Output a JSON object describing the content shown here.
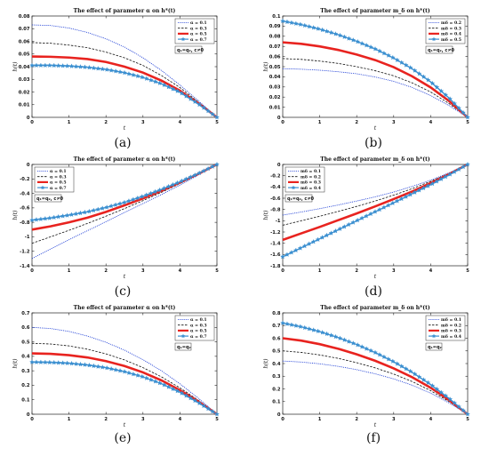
{
  "chart_data": [
    {
      "type": "line",
      "caption": "(a)",
      "title": "The effect of parameter α on h*(t)",
      "xlabel": "t",
      "ylabel": "h(t)",
      "xlim": [
        0,
        5
      ],
      "ylim": [
        0,
        0.08
      ],
      "xticks": [
        "0",
        "1",
        "2",
        "3",
        "4",
        "5"
      ],
      "yticks": [
        "0",
        "0.01",
        "0.02",
        "0.03",
        "0.04",
        "0.05",
        "0.06",
        "0.07",
        "0.08"
      ],
      "legend_position": "top-right",
      "annotation": "q₁=q₂, c≠0",
      "x": [
        0,
        0.5,
        1,
        1.5,
        2,
        2.5,
        3,
        3.5,
        4,
        4.5,
        5
      ],
      "series": [
        {
          "name": "α = 0.1",
          "style": "dotted",
          "color": "#1f3fd6",
          "values": [
            0.073,
            0.0725,
            0.0705,
            0.067,
            0.062,
            0.0555,
            0.047,
            0.037,
            0.0255,
            0.013,
            0
          ]
        },
        {
          "name": "α = 0.3",
          "style": "dashed",
          "color": "#111111",
          "values": [
            0.059,
            0.0585,
            0.057,
            0.055,
            0.0515,
            0.047,
            0.041,
            0.033,
            0.0235,
            0.012,
            0
          ]
        },
        {
          "name": "α = 0.5",
          "style": "solid",
          "color": "#e8231f",
          "values": [
            0.048,
            0.0478,
            0.0472,
            0.046,
            0.0437,
            0.04,
            0.0353,
            0.029,
            0.0211,
            0.011,
            0
          ]
        },
        {
          "name": "α = 0.7",
          "style": "marker",
          "color": "#3a8fd0",
          "values": [
            0.041,
            0.041,
            0.0405,
            0.0395,
            0.0378,
            0.0352,
            0.0315,
            0.0265,
            0.0198,
            0.0105,
            0
          ]
        }
      ]
    },
    {
      "type": "line",
      "caption": "(b)",
      "title": "The effect of parameter m_δ on h*(t)",
      "xlabel": "t",
      "ylabel": "h(t)",
      "xlim": [
        0,
        5
      ],
      "ylim": [
        0,
        0.1
      ],
      "xticks": [
        "0",
        "1",
        "2",
        "3",
        "4",
        "5"
      ],
      "yticks": [
        "0",
        "0.01",
        "0.02",
        "0.03",
        "0.04",
        "0.05",
        "0.06",
        "0.07",
        "0.08",
        "0.09",
        "0.1"
      ],
      "legend_position": "top-right",
      "annotation": "q₁=q₂, c≠0",
      "x": [
        0,
        0.5,
        1,
        1.5,
        2,
        2.5,
        3,
        3.5,
        4,
        4.5,
        5
      ],
      "series": [
        {
          "name": "mδ = 0.2",
          "style": "dotted",
          "color": "#1f3fd6",
          "values": [
            0.048,
            0.0475,
            0.0465,
            0.045,
            0.043,
            0.0398,
            0.0355,
            0.0295,
            0.0215,
            0.0115,
            0
          ]
        },
        {
          "name": "mδ = 0.3",
          "style": "dashed",
          "color": "#111111",
          "values": [
            0.058,
            0.0572,
            0.0555,
            0.0532,
            0.05,
            0.046,
            0.041,
            0.034,
            0.025,
            0.0135,
            0
          ]
        },
        {
          "name": "mδ = 0.4",
          "style": "solid",
          "color": "#e8231f",
          "values": [
            0.074,
            0.0725,
            0.07,
            0.0665,
            0.062,
            0.0565,
            0.0495,
            0.0405,
            0.0295,
            0.016,
            0
          ]
        },
        {
          "name": "mδ = 0.5",
          "style": "marker",
          "color": "#3a8fd0",
          "values": [
            0.095,
            0.0915,
            0.087,
            0.0815,
            0.075,
            0.0675,
            0.0585,
            0.048,
            0.035,
            0.019,
            0
          ]
        }
      ]
    },
    {
      "type": "line",
      "caption": "(c)",
      "title": "The effect of parameter α on h*(t)",
      "xlabel": "t",
      "ylabel": "h(t)",
      "xlim": [
        0,
        5
      ],
      "ylim": [
        -1.4,
        0
      ],
      "xticks": [
        "0",
        "1",
        "2",
        "3",
        "4",
        "5"
      ],
      "yticks": [
        "-1.4",
        "-1.2",
        "-1",
        "-0.8",
        "-0.6",
        "-0.4",
        "-0.2",
        "0"
      ],
      "legend_position": "top-left",
      "annotation": "q₁=q₂, c≠0",
      "x": [
        0,
        0.5,
        1,
        1.5,
        2,
        2.5,
        3,
        3.5,
        4,
        4.5,
        5
      ],
      "series": [
        {
          "name": "α = 0.1",
          "style": "dotted",
          "color": "#1f3fd6",
          "values": [
            -1.3,
            -1.17,
            -1.04,
            -0.915,
            -0.79,
            -0.665,
            -0.54,
            -0.415,
            -0.285,
            -0.145,
            0
          ]
        },
        {
          "name": "α = 0.3",
          "style": "dashed",
          "color": "#111111",
          "values": [
            -1.09,
            -1.0,
            -0.91,
            -0.815,
            -0.715,
            -0.61,
            -0.5,
            -0.385,
            -0.265,
            -0.135,
            0
          ]
        },
        {
          "name": "α = 0.5",
          "style": "solid",
          "color": "#e8231f",
          "values": [
            -0.9,
            -0.855,
            -0.8,
            -0.735,
            -0.655,
            -0.565,
            -0.47,
            -0.365,
            -0.25,
            -0.13,
            0
          ]
        },
        {
          "name": "α = 0.7",
          "style": "marker",
          "color": "#3a8fd0",
          "values": [
            -0.77,
            -0.74,
            -0.7,
            -0.655,
            -0.595,
            -0.525,
            -0.44,
            -0.345,
            -0.24,
            -0.125,
            0
          ]
        }
      ]
    },
    {
      "type": "line",
      "caption": "(d)",
      "title": "The effect of parameter m_δ on h*(t)",
      "xlabel": "t",
      "ylabel": "h(t)",
      "xlim": [
        0,
        5
      ],
      "ylim": [
        -1.8,
        0
      ],
      "xticks": [
        "0",
        "1",
        "2",
        "3",
        "4",
        "5"
      ],
      "yticks": [
        "-1.8",
        "-1.6",
        "-1.4",
        "-1.2",
        "-1",
        "-0.8",
        "-0.6",
        "-0.4",
        "-0.2",
        "0"
      ],
      "legend_position": "top-left",
      "annotation": "q₁=q₂, c≠0",
      "x": [
        0,
        0.5,
        1,
        1.5,
        2,
        2.5,
        3,
        3.5,
        4,
        4.5,
        5
      ],
      "series": [
        {
          "name": "mδ = 0.1",
          "style": "dotted",
          "color": "#1f3fd6",
          "values": [
            -0.9,
            -0.845,
            -0.785,
            -0.72,
            -0.65,
            -0.575,
            -0.49,
            -0.39,
            -0.28,
            -0.148,
            0
          ]
        },
        {
          "name": "mδ = 0.2",
          "style": "dashed",
          "color": "#111111",
          "values": [
            -1.08,
            -1.0,
            -0.92,
            -0.835,
            -0.745,
            -0.65,
            -0.545,
            -0.43,
            -0.3,
            -0.158,
            0
          ]
        },
        {
          "name": "mδ = 0.3",
          "style": "solid",
          "color": "#e8231f",
          "values": [
            -1.34,
            -1.225,
            -1.11,
            -0.99,
            -0.87,
            -0.745,
            -0.615,
            -0.48,
            -0.33,
            -0.17,
            0
          ]
        },
        {
          "name": "mδ = 0.4",
          "style": "marker",
          "color": "#3a8fd0",
          "values": [
            -1.64,
            -1.48,
            -1.32,
            -1.16,
            -1.0,
            -0.84,
            -0.68,
            -0.52,
            -0.36,
            -0.185,
            0
          ]
        }
      ]
    },
    {
      "type": "line",
      "caption": "(e)",
      "title": "The effect of parameter α on h*(t)",
      "xlabel": "t",
      "ylabel": "h(t)",
      "xlim": [
        0,
        5
      ],
      "ylim": [
        0,
        0.7
      ],
      "xticks": [
        "0",
        "1",
        "2",
        "3",
        "4",
        "5"
      ],
      "yticks": [
        "0",
        "0.1",
        "0.2",
        "0.3",
        "0.4",
        "0.5",
        "0.6",
        "0.7"
      ],
      "legend_position": "top-right",
      "annotation": "q₁=q₂",
      "x": [
        0,
        0.5,
        1,
        1.5,
        2,
        2.5,
        3,
        3.5,
        4,
        4.5,
        5
      ],
      "series": [
        {
          "name": "α = 0.1",
          "style": "dotted",
          "color": "#1f3fd6",
          "values": [
            0.6,
            0.592,
            0.572,
            0.54,
            0.497,
            0.443,
            0.377,
            0.3,
            0.21,
            0.11,
            0
          ]
        },
        {
          "name": "α = 0.3",
          "style": "dashed",
          "color": "#111111",
          "values": [
            0.49,
            0.485,
            0.472,
            0.449,
            0.417,
            0.375,
            0.322,
            0.258,
            0.182,
            0.096,
            0
          ]
        },
        {
          "name": "α = 0.5",
          "style": "solid",
          "color": "#e8231f",
          "values": [
            0.42,
            0.417,
            0.408,
            0.392,
            0.367,
            0.333,
            0.289,
            0.234,
            0.166,
            0.088,
            0
          ]
        },
        {
          "name": "α = 0.7",
          "style": "marker",
          "color": "#3a8fd0",
          "values": [
            0.36,
            0.358,
            0.352,
            0.34,
            0.321,
            0.294,
            0.258,
            0.211,
            0.152,
            0.08,
            0
          ]
        }
      ]
    },
    {
      "type": "line",
      "caption": "(f)",
      "title": "The effect of parameter m_δ on h*(t)",
      "xlabel": "t",
      "ylabel": "h(t)",
      "xlim": [
        0,
        5
      ],
      "ylim": [
        0,
        0.8
      ],
      "xticks": [
        "0",
        "1",
        "2",
        "3",
        "4",
        "5"
      ],
      "yticks": [
        "0",
        "0.1",
        "0.2",
        "0.3",
        "0.4",
        "0.5",
        "0.6",
        "0.7",
        "0.8"
      ],
      "legend_position": "top-right",
      "annotation": "q₁=q₂",
      "x": [
        0,
        0.5,
        1,
        1.5,
        2,
        2.5,
        3,
        3.5,
        4,
        4.5,
        5
      ],
      "series": [
        {
          "name": "mδ = 0.1",
          "style": "dotted",
          "color": "#1f3fd6",
          "values": [
            0.42,
            0.412,
            0.398,
            0.378,
            0.352,
            0.319,
            0.279,
            0.229,
            0.166,
            0.089,
            0
          ]
        },
        {
          "name": "mδ = 0.2",
          "style": "dashed",
          "color": "#111111",
          "values": [
            0.5,
            0.488,
            0.468,
            0.441,
            0.407,
            0.366,
            0.317,
            0.258,
            0.186,
            0.099,
            0
          ]
        },
        {
          "name": "mδ = 0.3",
          "style": "solid",
          "color": "#e8231f",
          "values": [
            0.6,
            0.581,
            0.553,
            0.517,
            0.473,
            0.422,
            0.362,
            0.292,
            0.209,
            0.111,
            0
          ]
        },
        {
          "name": "mδ = 0.4",
          "style": "marker",
          "color": "#3a8fd0",
          "values": [
            0.72,
            0.69,
            0.652,
            0.605,
            0.55,
            0.487,
            0.414,
            0.331,
            0.235,
            0.124,
            0
          ]
        }
      ]
    }
  ]
}
